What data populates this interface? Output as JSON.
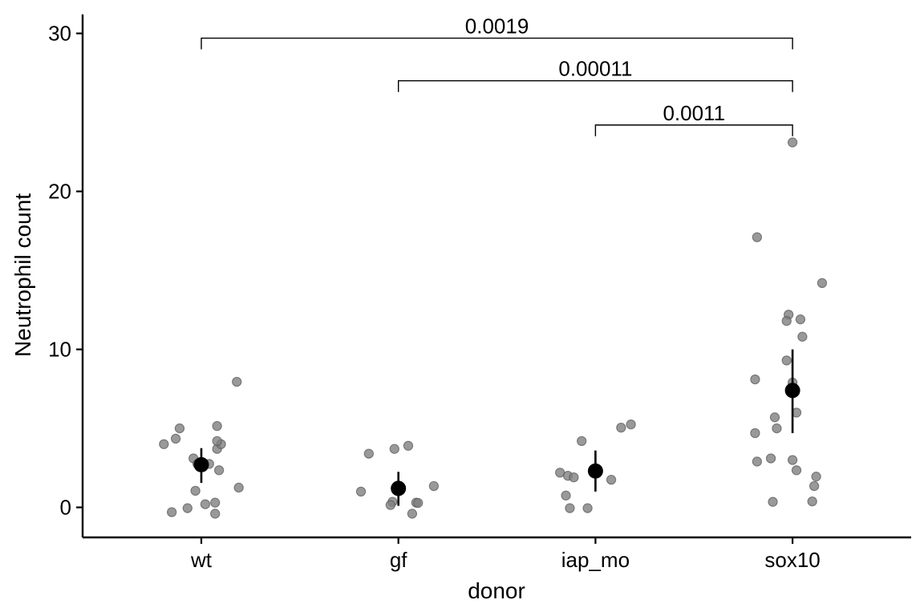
{
  "chart_data": {
    "type": "scatter",
    "xlabel": "donor",
    "ylabel": "Neutrophil count",
    "categories": [
      "wt",
      "gf",
      "iap_mo",
      "sox10"
    ],
    "ylim": [
      -1.9,
      31.2
    ],
    "yticks": [
      0,
      10,
      20,
      30
    ],
    "grid": false,
    "legend": "none",
    "colors": {
      "points": "#808080",
      "summary": "#000000",
      "axis": "#000000"
    },
    "points": [
      {
        "x": -0.19,
        "y": 4.0
      },
      {
        "x": -0.13,
        "y": 4.35
      },
      {
        "x": -0.11,
        "y": 5.0
      },
      {
        "x": -0.04,
        "y": 3.1
      },
      {
        "x": 0.08,
        "y": 5.15
      },
      {
        "x": 0.18,
        "y": 7.95
      },
      {
        "x": 0.08,
        "y": 3.7
      },
      {
        "x": 0.1,
        "y": 4.0
      },
      {
        "x": 0.08,
        "y": 4.2
      },
      {
        "x": -0.02,
        "y": 2.75
      },
      {
        "x": 0.04,
        "y": 2.75
      },
      {
        "x": 0.09,
        "y": 2.35
      },
      {
        "x": -0.03,
        "y": 1.05
      },
      {
        "x": 0.19,
        "y": 1.25
      },
      {
        "x": 0.02,
        "y": 0.2
      },
      {
        "x": 0.07,
        "y": 0.3
      },
      {
        "x": -0.07,
        "y": -0.05
      },
      {
        "x": -0.15,
        "y": -0.3
      },
      {
        "x": 0.07,
        "y": -0.4
      },
      {
        "x": 0.85,
        "y": 3.4
      },
      {
        "x": 0.98,
        "y": 3.7
      },
      {
        "x": 1.05,
        "y": 3.9
      },
      {
        "x": 0.81,
        "y": 1.0
      },
      {
        "x": 1.18,
        "y": 1.35
      },
      {
        "x": 0.97,
        "y": 0.35
      },
      {
        "x": 0.96,
        "y": 0.15
      },
      {
        "x": 1.09,
        "y": 0.3
      },
      {
        "x": 1.1,
        "y": 0.28
      },
      {
        "x": 1.07,
        "y": -0.4
      },
      {
        "x": 1.93,
        "y": 4.2
      },
      {
        "x": 2.13,
        "y": 5.05
      },
      {
        "x": 2.18,
        "y": 5.25
      },
      {
        "x": 1.82,
        "y": 2.2
      },
      {
        "x": 1.86,
        "y": 2.0
      },
      {
        "x": 1.89,
        "y": 1.9
      },
      {
        "x": 2.08,
        "y": 1.75
      },
      {
        "x": 1.85,
        "y": 0.75
      },
      {
        "x": 1.87,
        "y": -0.05
      },
      {
        "x": 1.96,
        "y": -0.05
      },
      {
        "x": 3.0,
        "y": 23.1
      },
      {
        "x": 2.82,
        "y": 17.1
      },
      {
        "x": 3.15,
        "y": 14.2
      },
      {
        "x": 2.98,
        "y": 12.2
      },
      {
        "x": 3.04,
        "y": 11.9
      },
      {
        "x": 2.97,
        "y": 11.8
      },
      {
        "x": 3.05,
        "y": 10.8
      },
      {
        "x": 2.97,
        "y": 9.3
      },
      {
        "x": 2.81,
        "y": 8.1
      },
      {
        "x": 3.0,
        "y": 7.9
      },
      {
        "x": 3.02,
        "y": 6.0
      },
      {
        "x": 2.91,
        "y": 5.7
      },
      {
        "x": 2.92,
        "y": 5.0
      },
      {
        "x": 2.81,
        "y": 4.7
      },
      {
        "x": 2.89,
        "y": 3.1
      },
      {
        "x": 2.82,
        "y": 2.9
      },
      {
        "x": 3.0,
        "y": 3.0
      },
      {
        "x": 3.02,
        "y": 2.35
      },
      {
        "x": 3.12,
        "y": 1.95
      },
      {
        "x": 3.11,
        "y": 1.35
      },
      {
        "x": 2.9,
        "y": 0.35
      },
      {
        "x": 3.1,
        "y": 0.38
      }
    ],
    "summary": [
      {
        "category": "wt",
        "mean": 2.7,
        "lower": 1.55,
        "upper": 3.75
      },
      {
        "category": "gf",
        "mean": 1.2,
        "lower": 0.1,
        "upper": 2.25
      },
      {
        "category": "iap_mo",
        "mean": 2.3,
        "lower": 1.0,
        "upper": 3.6
      },
      {
        "category": "sox10",
        "mean": 7.4,
        "lower": 4.7,
        "upper": 10.0
      }
    ],
    "comparisons": [
      {
        "from": "wt",
        "to": "sox10",
        "y": 29.7,
        "label": "0.0019"
      },
      {
        "from": "gf",
        "to": "sox10",
        "y": 27.0,
        "label": "0.00011"
      },
      {
        "from": "iap_mo",
        "to": "sox10",
        "y": 24.2,
        "label": "0.0011"
      }
    ]
  }
}
